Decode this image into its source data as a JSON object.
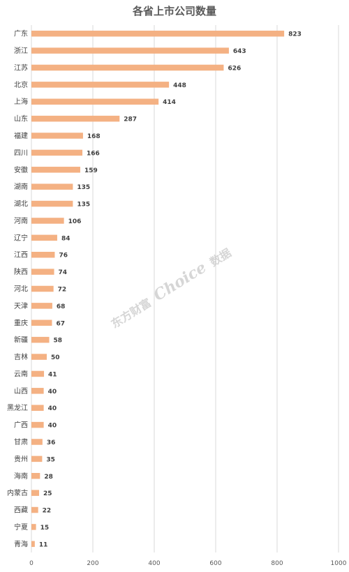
{
  "chart_data": {
    "type": "bar",
    "orientation": "horizontal",
    "title": "各省上市公司数量",
    "xlabel": "",
    "ylabel": "",
    "categories": [
      "广东",
      "浙江",
      "江苏",
      "北京",
      "上海",
      "山东",
      "福建",
      "四川",
      "安徽",
      "湖南",
      "湖北",
      "河南",
      "辽宁",
      "江西",
      "陕西",
      "河北",
      "天津",
      "重庆",
      "新疆",
      "吉林",
      "云南",
      "山西",
      "黑龙江",
      "广西",
      "甘肃",
      "贵州",
      "海南",
      "内蒙古",
      "西藏",
      "宁夏",
      "青海"
    ],
    "values": [
      823,
      643,
      626,
      448,
      414,
      287,
      168,
      166,
      159,
      135,
      135,
      106,
      84,
      76,
      74,
      72,
      68,
      67,
      58,
      50,
      41,
      40,
      40,
      40,
      36,
      35,
      28,
      25,
      22,
      15,
      11
    ],
    "xlim": [
      0,
      1000
    ],
    "xticks": [
      0,
      200,
      400,
      600,
      800,
      1000
    ],
    "grid": true,
    "bar_color": "#f4b183",
    "legend": "none"
  },
  "watermark": {
    "part1": "东方财富",
    "part2": "Choice",
    "part3": "数据"
  }
}
